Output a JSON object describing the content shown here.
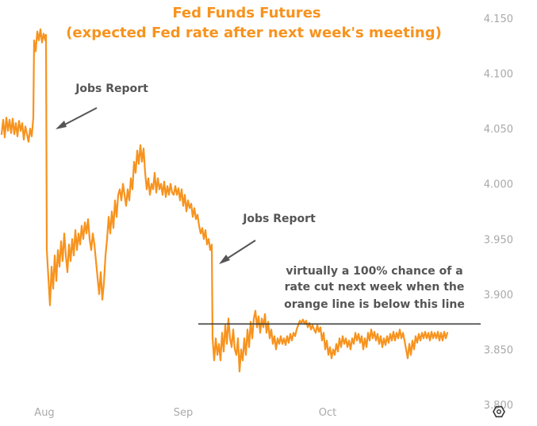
{
  "chart_data": {
    "type": "line",
    "title": "Fed Funds Futures",
    "subtitle": "(expected Fed rate after next week's meeting)",
    "xlabel": "",
    "ylabel": "",
    "x_tick_labels": [
      "Aug",
      "Sep",
      "Oct"
    ],
    "y_tick_labels": [
      "4.150",
      "4.100",
      "4.050",
      "4.000",
      "3.950",
      "3.900",
      "3.850",
      "3.800"
    ],
    "ylim": [
      3.8,
      4.155
    ],
    "grid": false,
    "legend": "none",
    "threshold": 3.873,
    "colors": {
      "line": "#f7931e",
      "threshold": "#333333",
      "annotation": "#555555",
      "title": "#f7931e",
      "ticks": "#a9a9a9"
    },
    "annotations": {
      "jobs_report_1": "Jobs Report",
      "jobs_report_2": "Jobs Report",
      "threshold_note": [
        "virtually a 100% chance of a",
        "rate cut next week when the",
        "orange line is below this line"
      ]
    },
    "series": [
      {
        "values": [
          [
            0,
            4.045
          ],
          [
            2,
            4.058
          ],
          [
            4,
            4.042
          ],
          [
            6,
            4.06
          ],
          [
            8,
            4.048
          ],
          [
            10,
            4.058
          ],
          [
            12,
            4.046
          ],
          [
            14,
            4.059
          ],
          [
            16,
            4.045
          ],
          [
            18,
            4.055
          ],
          [
            20,
            4.043
          ],
          [
            22,
            4.057
          ],
          [
            24,
            4.048
          ],
          [
            26,
            4.055
          ],
          [
            28,
            4.04
          ],
          [
            30,
            4.052
          ],
          [
            32,
            4.045
          ],
          [
            34,
            4.038
          ],
          [
            36,
            4.05
          ],
          [
            38,
            4.043
          ],
          [
            40,
            4.06
          ],
          [
            41,
            4.13
          ],
          [
            43,
            4.12
          ],
          [
            45,
            4.138
          ],
          [
            47,
            4.13
          ],
          [
            49,
            4.14
          ],
          [
            51,
            4.128
          ],
          [
            53,
            4.136
          ],
          [
            55,
            4.13
          ],
          [
            56,
            4.135
          ],
          [
            57,
            3.94
          ],
          [
            59,
            3.915
          ],
          [
            61,
            3.89
          ],
          [
            63,
            3.925
          ],
          [
            65,
            3.905
          ],
          [
            67,
            3.935
          ],
          [
            69,
            3.912
          ],
          [
            71,
            3.94
          ],
          [
            73,
            3.925
          ],
          [
            75,
            3.948
          ],
          [
            77,
            3.93
          ],
          [
            79,
            3.955
          ],
          [
            81,
            3.935
          ],
          [
            83,
            3.92
          ],
          [
            85,
            3.945
          ],
          [
            87,
            3.93
          ],
          [
            89,
            3.95
          ],
          [
            91,
            3.935
          ],
          [
            93,
            3.958
          ],
          [
            95,
            3.94
          ],
          [
            97,
            3.955
          ],
          [
            99,
            3.945
          ],
          [
            101,
            3.962
          ],
          [
            103,
            3.95
          ],
          [
            105,
            3.965
          ],
          [
            107,
            3.955
          ],
          [
            109,
            3.968
          ],
          [
            111,
            3.95
          ],
          [
            113,
            3.94
          ],
          [
            115,
            3.955
          ],
          [
            117,
            3.945
          ],
          [
            119,
            3.93
          ],
          [
            121,
            3.915
          ],
          [
            123,
            3.9
          ],
          [
            125,
            3.92
          ],
          [
            127,
            3.895
          ],
          [
            129,
            3.91
          ],
          [
            131,
            3.935
          ],
          [
            133,
            3.95
          ],
          [
            135,
            3.97
          ],
          [
            137,
            3.955
          ],
          [
            139,
            3.975
          ],
          [
            141,
            3.96
          ],
          [
            143,
            3.985
          ],
          [
            145,
            3.97
          ],
          [
            147,
            3.99
          ],
          [
            149,
            3.995
          ],
          [
            151,
            3.985
          ],
          [
            153,
            4.0
          ],
          [
            155,
            3.99
          ],
          [
            157,
            3.98
          ],
          [
            159,
            3.995
          ],
          [
            161,
            3.985
          ],
          [
            163,
            4.005
          ],
          [
            165,
            3.995
          ],
          [
            167,
            4.02
          ],
          [
            169,
            4.01
          ],
          [
            171,
            4.03
          ],
          [
            173,
            4.018
          ],
          [
            175,
            4.035
          ],
          [
            177,
            4.02
          ],
          [
            179,
            4.032
          ],
          [
            181,
            4.01
          ],
          [
            183,
            3.995
          ],
          [
            185,
            4.005
          ],
          [
            187,
            3.99
          ],
          [
            189,
            4.0
          ],
          [
            191,
            3.995
          ],
          [
            193,
            4.01
          ],
          [
            195,
            3.992
          ],
          [
            197,
            4.005
          ],
          [
            199,
            3.995
          ],
          [
            201,
            4.0
          ],
          [
            203,
            3.99
          ],
          [
            205,
            4.002
          ],
          [
            207,
            3.988
          ],
          [
            209,
            3.998
          ],
          [
            211,
            3.99
          ],
          [
            213,
            4.0
          ],
          [
            215,
            3.992
          ],
          [
            217,
            3.99
          ],
          [
            219,
            3.998
          ],
          [
            221,
            3.99
          ],
          [
            223,
            3.996
          ],
          [
            225,
            3.985
          ],
          [
            227,
            3.995
          ],
          [
            229,
            3.98
          ],
          [
            231,
            3.99
          ],
          [
            233,
            3.975
          ],
          [
            235,
            3.985
          ],
          [
            237,
            3.978
          ],
          [
            239,
            3.982
          ],
          [
            241,
            3.97
          ],
          [
            243,
            3.978
          ],
          [
            245,
            3.968
          ],
          [
            247,
            3.972
          ],
          [
            249,
            3.962
          ],
          [
            251,
            3.955
          ],
          [
            253,
            3.96
          ],
          [
            255,
            3.95
          ],
          [
            257,
            3.958
          ],
          [
            259,
            3.945
          ],
          [
            261,
            3.95
          ],
          [
            263,
            3.94
          ],
          [
            265,
            3.945
          ],
          [
            266,
            3.86
          ],
          [
            268,
            3.84
          ],
          [
            270,
            3.86
          ],
          [
            272,
            3.845
          ],
          [
            274,
            3.855
          ],
          [
            276,
            3.84
          ],
          [
            278,
            3.865
          ],
          [
            280,
            3.848
          ],
          [
            282,
            3.872
          ],
          [
            284,
            3.855
          ],
          [
            286,
            3.878
          ],
          [
            288,
            3.86
          ],
          [
            290,
            3.852
          ],
          [
            292,
            3.868
          ],
          [
            294,
            3.85
          ],
          [
            296,
            3.845
          ],
          [
            298,
            3.86
          ],
          [
            300,
            3.83
          ],
          [
            302,
            3.85
          ],
          [
            304,
            3.84
          ],
          [
            306,
            3.86
          ],
          [
            308,
            3.845
          ],
          [
            310,
            3.868
          ],
          [
            312,
            3.852
          ],
          [
            314,
            3.875
          ],
          [
            316,
            3.86
          ],
          [
            318,
            3.878
          ],
          [
            320,
            3.885
          ],
          [
            322,
            3.87
          ],
          [
            324,
            3.88
          ],
          [
            326,
            3.865
          ],
          [
            328,
            3.878
          ],
          [
            330,
            3.87
          ],
          [
            332,
            3.882
          ],
          [
            334,
            3.865
          ],
          [
            336,
            3.875
          ],
          [
            338,
            3.86
          ],
          [
            340,
            3.868
          ],
          [
            342,
            3.855
          ],
          [
            344,
            3.862
          ],
          [
            346,
            3.85
          ],
          [
            348,
            3.86
          ],
          [
            350,
            3.855
          ],
          [
            352,
            3.862
          ],
          [
            354,
            3.855
          ],
          [
            356,
            3.86
          ],
          [
            358,
            3.854
          ],
          [
            360,
            3.862
          ],
          [
            362,
            3.856
          ],
          [
            364,
            3.864
          ],
          [
            366,
            3.858
          ],
          [
            368,
            3.865
          ],
          [
            370,
            3.862
          ],
          [
            372,
            3.868
          ],
          [
            374,
            3.872
          ],
          [
            376,
            3.876
          ],
          [
            378,
            3.874
          ],
          [
            380,
            3.877
          ],
          [
            382,
            3.873
          ],
          [
            384,
            3.876
          ],
          [
            386,
            3.87
          ],
          [
            388,
            3.874
          ],
          [
            390,
            3.868
          ],
          [
            392,
            3.872
          ],
          [
            394,
            3.868
          ],
          [
            396,
            3.865
          ],
          [
            398,
            3.872
          ],
          [
            400,
            3.866
          ],
          [
            402,
            3.87
          ],
          [
            404,
            3.858
          ],
          [
            406,
            3.865
          ],
          [
            408,
            3.85
          ],
          [
            410,
            3.858
          ],
          [
            412,
            3.845
          ],
          [
            414,
            3.852
          ],
          [
            416,
            3.842
          ],
          [
            418,
            3.85
          ],
          [
            420,
            3.845
          ],
          [
            422,
            3.855
          ],
          [
            424,
            3.848
          ],
          [
            426,
            3.86
          ],
          [
            428,
            3.852
          ],
          [
            430,
            3.862
          ],
          [
            432,
            3.855
          ],
          [
            434,
            3.86
          ],
          [
            436,
            3.852
          ],
          [
            438,
            3.858
          ],
          [
            440,
            3.85
          ],
          [
            442,
            3.86
          ],
          [
            444,
            3.855
          ],
          [
            446,
            3.865
          ],
          [
            448,
            3.858
          ],
          [
            450,
            3.864
          ],
          [
            452,
            3.856
          ],
          [
            454,
            3.862
          ],
          [
            456,
            3.85
          ],
          [
            458,
            3.86
          ],
          [
            460,
            3.852
          ],
          [
            462,
            3.865
          ],
          [
            464,
            3.858
          ],
          [
            466,
            3.868
          ],
          [
            468,
            3.86
          ],
          [
            470,
            3.866
          ],
          [
            472,
            3.858
          ],
          [
            474,
            3.864
          ],
          [
            476,
            3.855
          ],
          [
            478,
            3.862
          ],
          [
            480,
            3.852
          ],
          [
            482,
            3.86
          ],
          [
            484,
            3.854
          ],
          [
            486,
            3.862
          ],
          [
            488,
            3.856
          ],
          [
            490,
            3.864
          ],
          [
            492,
            3.858
          ],
          [
            494,
            3.866
          ],
          [
            496,
            3.858
          ],
          [
            498,
            3.865
          ],
          [
            500,
            3.86
          ],
          [
            502,
            3.868
          ],
          [
            504,
            3.86
          ],
          [
            506,
            3.865
          ],
          [
            508,
            3.858
          ],
          [
            510,
            3.85
          ],
          [
            512,
            3.842
          ],
          [
            514,
            3.855
          ],
          [
            516,
            3.845
          ],
          [
            518,
            3.858
          ],
          [
            520,
            3.85
          ],
          [
            522,
            3.862
          ],
          [
            524,
            3.856
          ],
          [
            526,
            3.864
          ],
          [
            528,
            3.858
          ],
          [
            530,
            3.865
          ],
          [
            532,
            3.86
          ],
          [
            534,
            3.866
          ],
          [
            536,
            3.86
          ],
          [
            538,
            3.865
          ],
          [
            540,
            3.858
          ],
          [
            542,
            3.866
          ],
          [
            544,
            3.86
          ],
          [
            546,
            3.865
          ],
          [
            548,
            3.86
          ],
          [
            550,
            3.866
          ],
          [
            552,
            3.858
          ],
          [
            554,
            3.865
          ],
          [
            556,
            3.858
          ],
          [
            558,
            3.866
          ],
          [
            560,
            3.86
          ],
          [
            562,
            3.865
          ]
        ]
      }
    ]
  },
  "ui": {
    "settings_icon": "gear-icon"
  }
}
